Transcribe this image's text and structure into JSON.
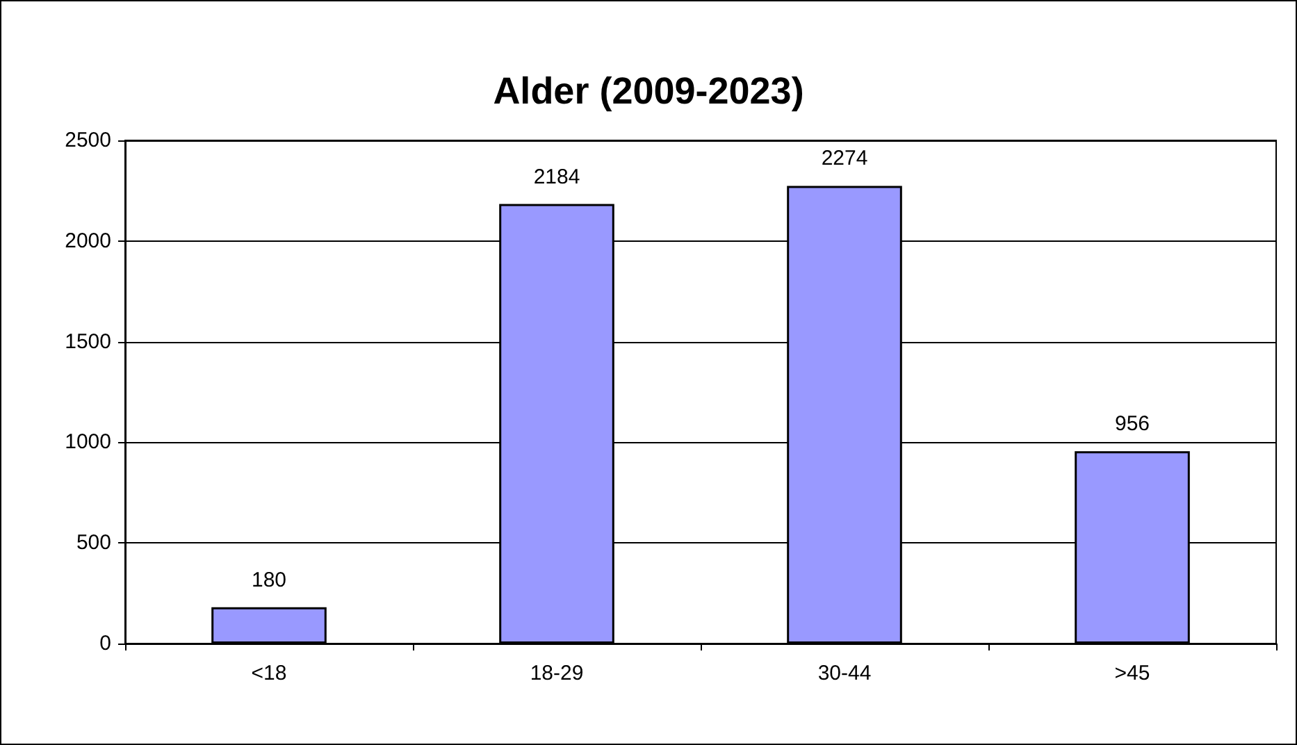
{
  "chart_data": {
    "type": "bar",
    "title": "Alder (2009-2023)",
    "categories": [
      "<18",
      "18-29",
      "30-44",
      ">45"
    ],
    "values": [
      180,
      2184,
      2274,
      956
    ],
    "color": "#9999ff",
    "ylim": [
      0,
      2500
    ],
    "yticks": [
      0,
      500,
      1000,
      1500,
      2000,
      2500
    ],
    "grid": "y",
    "data_labels": true
  }
}
